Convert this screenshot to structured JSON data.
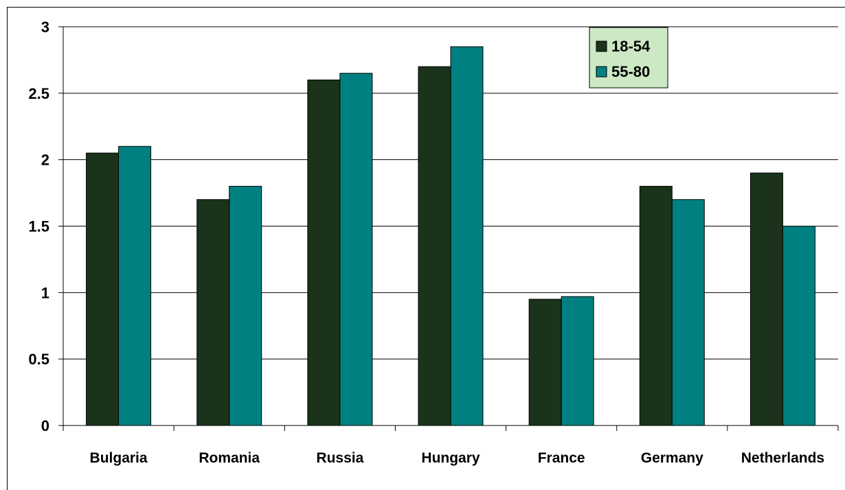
{
  "chart_data": {
    "type": "bar",
    "categories": [
      "Bulgaria",
      "Romania",
      "Russia",
      "Hungary",
      "France",
      "Germany",
      "Netherlands"
    ],
    "series": [
      {
        "name": "18-54",
        "values": [
          2.05,
          1.7,
          2.6,
          2.7,
          0.95,
          1.8,
          1.9
        ],
        "color": "#1a331a"
      },
      {
        "name": "55-80",
        "values": [
          2.1,
          1.8,
          2.65,
          2.85,
          0.97,
          1.7,
          1.5
        ],
        "color": "#008080"
      }
    ],
    "ylim": [
      0,
      3
    ],
    "yticks": [
      0,
      0.5,
      1,
      1.5,
      2,
      2.5,
      3
    ],
    "ytick_labels": [
      "0",
      "0.5",
      "1",
      "1.5",
      "2",
      "2.5",
      "3"
    ],
    "grid": true,
    "legend_position": "top-right",
    "legend_background": "#cce8c4",
    "title": "",
    "xlabel": "",
    "ylabel": ""
  }
}
